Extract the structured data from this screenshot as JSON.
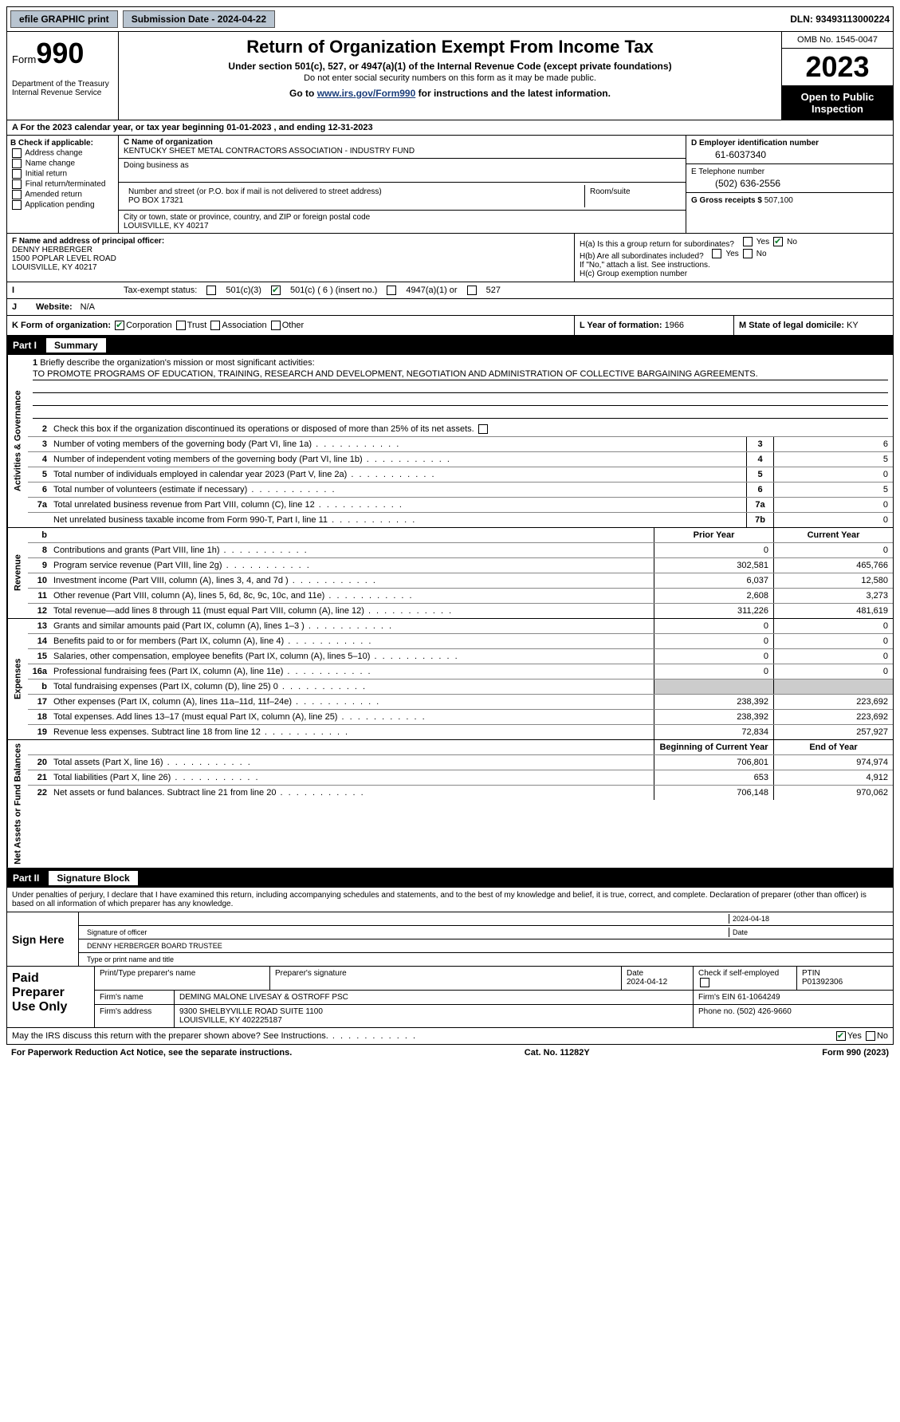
{
  "topbar": {
    "efile_label": "efile GRAPHIC print",
    "submission_label": "Submission Date - 2024-04-22",
    "dln_label": "DLN: 93493113000224"
  },
  "header": {
    "form_word": "Form",
    "form_num": "990",
    "dept": "Department of the Treasury Internal Revenue Service",
    "title": "Return of Organization Exempt From Income Tax",
    "sub": "Under section 501(c), 527, or 4947(a)(1) of the Internal Revenue Code (except private foundations)",
    "sub2": "Do not enter social security numbers on this form as it may be made public.",
    "link_pre": "Go to ",
    "link_url": "www.irs.gov/Form990",
    "link_post": " for instructions and the latest information.",
    "omb": "OMB No. 1545-0047",
    "year": "2023",
    "open": "Open to Public Inspection"
  },
  "row_a": "A  For the 2023 calendar year, or tax year beginning 01-01-2023   , and ending 12-31-2023",
  "col_b": {
    "hdr": "B Check if applicable:",
    "items": [
      "Address change",
      "Name change",
      "Initial return",
      "Final return/terminated",
      "Amended return",
      "Application pending"
    ]
  },
  "col_c": {
    "name_lbl": "C Name of organization",
    "name": "KENTUCKY SHEET METAL CONTRACTORS ASSOCIATION - INDUSTRY FUND",
    "dba_lbl": "Doing business as",
    "street_lbl": "Number and street (or P.O. box if mail is not delivered to street address)",
    "street": "PO BOX 17321",
    "room_lbl": "Room/suite",
    "city_lbl": "City or town, state or province, country, and ZIP or foreign postal code",
    "city": "LOUISVILLE, KY  40217"
  },
  "col_d": {
    "ein_lbl": "D Employer identification number",
    "ein": "61-6037340",
    "phone_lbl": "E Telephone number",
    "phone": "(502) 636-2556",
    "gross_lbl": "G Gross receipts $",
    "gross": "507,100"
  },
  "row_f": {
    "lbl": "F Name and address of principal officer:",
    "name": "DENNY HERBERGER",
    "addr1": "1500 POPLAR LEVEL ROAD",
    "addr2": "LOUISVILLE, KY  40217"
  },
  "row_h": {
    "ha": "H(a)  Is this a group return for subordinates?",
    "hb": "H(b)  Are all subordinates included?",
    "hb_note": "If \"No,\" attach a list. See instructions.",
    "hc": "H(c)  Group exemption number"
  },
  "row_i": {
    "lbl": "Tax-exempt status:",
    "opts": [
      "501(c)(3)",
      "501(c) ( 6 ) (insert no.)",
      "4947(a)(1) or",
      "527"
    ]
  },
  "row_j": {
    "lbl": "Website:",
    "val": "N/A"
  },
  "row_k": {
    "lbl": "K Form of organization:",
    "opts": [
      "Corporation",
      "Trust",
      "Association",
      "Other"
    ]
  },
  "row_l": {
    "lbl": "L Year of formation:",
    "val": "1966"
  },
  "row_m": {
    "lbl": "M State of legal domicile:",
    "val": "KY"
  },
  "parts": {
    "p1": "Part I",
    "p1t": "Summary",
    "p2": "Part II",
    "p2t": "Signature Block"
  },
  "vtabs": {
    "ag": "Activities & Governance",
    "rev": "Revenue",
    "exp": "Expenses",
    "net": "Net Assets or Fund Balances"
  },
  "mission": {
    "lbl": "Briefly describe the organization's mission or most significant activities:",
    "text": "TO PROMOTE PROGRAMS OF EDUCATION, TRAINING, RESEARCH AND DEVELOPMENT, NEGOTIATION AND ADMINISTRATION OF COLLECTIVE BARGAINING AGREEMENTS."
  },
  "line2": "Check this box      if the organization discontinued its operations or disposed of more than 25% of its net assets.",
  "ag_lines": [
    {
      "n": "3",
      "d": "Number of voting members of the governing body (Part VI, line 1a)",
      "box": "3",
      "v": "6"
    },
    {
      "n": "4",
      "d": "Number of independent voting members of the governing body (Part VI, line 1b)",
      "box": "4",
      "v": "5"
    },
    {
      "n": "5",
      "d": "Total number of individuals employed in calendar year 2023 (Part V, line 2a)",
      "box": "5",
      "v": "0"
    },
    {
      "n": "6",
      "d": "Total number of volunteers (estimate if necessary)",
      "box": "6",
      "v": "5"
    },
    {
      "n": "7a",
      "d": "Total unrelated business revenue from Part VIII, column (C), line 12",
      "box": "7a",
      "v": "0"
    },
    {
      "n": "",
      "d": "Net unrelated business taxable income from Form 990-T, Part I, line 11",
      "box": "7b",
      "v": "0"
    }
  ],
  "col_hdrs": {
    "b": "b",
    "py": "Prior Year",
    "cy": "Current Year"
  },
  "rev_lines": [
    {
      "n": "8",
      "d": "Contributions and grants (Part VIII, line 1h)",
      "py": "0",
      "cy": "0"
    },
    {
      "n": "9",
      "d": "Program service revenue (Part VIII, line 2g)",
      "py": "302,581",
      "cy": "465,766"
    },
    {
      "n": "10",
      "d": "Investment income (Part VIII, column (A), lines 3, 4, and 7d )",
      "py": "6,037",
      "cy": "12,580"
    },
    {
      "n": "11",
      "d": "Other revenue (Part VIII, column (A), lines 5, 6d, 8c, 9c, 10c, and 11e)",
      "py": "2,608",
      "cy": "3,273"
    },
    {
      "n": "12",
      "d": "Total revenue—add lines 8 through 11 (must equal Part VIII, column (A), line 12)",
      "py": "311,226",
      "cy": "481,619"
    }
  ],
  "exp_lines": [
    {
      "n": "13",
      "d": "Grants and similar amounts paid (Part IX, column (A), lines 1–3 )",
      "py": "0",
      "cy": "0"
    },
    {
      "n": "14",
      "d": "Benefits paid to or for members (Part IX, column (A), line 4)",
      "py": "0",
      "cy": "0"
    },
    {
      "n": "15",
      "d": "Salaries, other compensation, employee benefits (Part IX, column (A), lines 5–10)",
      "py": "0",
      "cy": "0"
    },
    {
      "n": "16a",
      "d": "Professional fundraising fees (Part IX, column (A), line 11e)",
      "py": "0",
      "cy": "0"
    },
    {
      "n": "b",
      "d": "Total fundraising expenses (Part IX, column (D), line 25) 0",
      "py": "",
      "cy": "",
      "shade": true
    },
    {
      "n": "17",
      "d": "Other expenses (Part IX, column (A), lines 11a–11d, 11f–24e)",
      "py": "238,392",
      "cy": "223,692"
    },
    {
      "n": "18",
      "d": "Total expenses. Add lines 13–17 (must equal Part IX, column (A), line 25)",
      "py": "238,392",
      "cy": "223,692"
    },
    {
      "n": "19",
      "d": "Revenue less expenses. Subtract line 18 from line 12",
      "py": "72,834",
      "cy": "257,927"
    }
  ],
  "net_hdrs": {
    "py": "Beginning of Current Year",
    "cy": "End of Year"
  },
  "net_lines": [
    {
      "n": "20",
      "d": "Total assets (Part X, line 16)",
      "py": "706,801",
      "cy": "974,974"
    },
    {
      "n": "21",
      "d": "Total liabilities (Part X, line 26)",
      "py": "653",
      "cy": "4,912"
    },
    {
      "n": "22",
      "d": "Net assets or fund balances. Subtract line 21 from line 20",
      "py": "706,148",
      "cy": "970,062"
    }
  ],
  "sig": {
    "decl": "Under penalties of perjury, I declare that I have examined this return, including accompanying schedules and statements, and to the best of my knowledge and belief, it is true, correct, and complete. Declaration of preparer (other than officer) is based on all information of which preparer has any knowledge.",
    "sign_here": "Sign Here",
    "sig_officer_lbl": "Signature of officer",
    "officer": "DENNY HERBERGER  BOARD TRUSTEE",
    "type_lbl": "Type or print name and title",
    "date_lbl": "Date",
    "date": "2024-04-18"
  },
  "paid": {
    "lbl": "Paid Preparer Use Only",
    "name_lbl": "Print/Type preparer's name",
    "psig_lbl": "Preparer's signature",
    "pdate_lbl": "Date",
    "pdate": "2024-04-12",
    "chk_lbl": "Check        if self-employed",
    "ptin_lbl": "PTIN",
    "ptin": "P01392306",
    "firm_name_lbl": "Firm's name",
    "firm_name": "DEMING MALONE LIVESAY & OSTROFF PSC",
    "firm_ein_lbl": "Firm's EIN",
    "firm_ein": "61-1064249",
    "firm_addr_lbl": "Firm's address",
    "firm_addr1": "9300 SHELBYVILLE ROAD SUITE 1100",
    "firm_addr2": "LOUISVILLE, KY  402225187",
    "phone_lbl": "Phone no.",
    "phone": "(502) 426-9660"
  },
  "discuss": "May the IRS discuss this return with the preparer shown above? See Instructions.",
  "footer": {
    "l": "For Paperwork Reduction Act Notice, see the separate instructions.",
    "c": "Cat. No. 11282Y",
    "r": "Form 990 (2023)"
  },
  "yn": {
    "yes": "Yes",
    "no": "No"
  }
}
